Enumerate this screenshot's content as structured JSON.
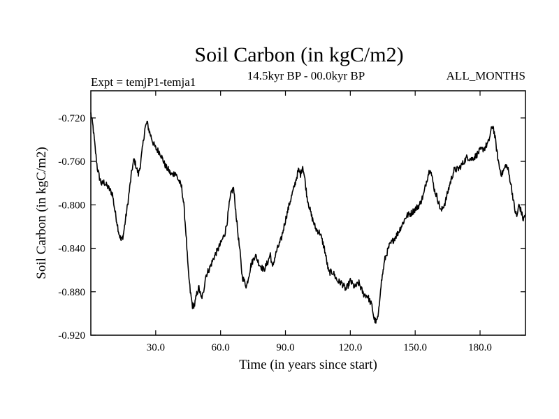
{
  "chart_data": {
    "type": "line",
    "title": "Soil Carbon (in kgC/m2)",
    "subtitle_left": "Expt = temjP1-temja1",
    "subtitle_center": "14.5kyr BP - 00.0kyr BP",
    "subtitle_right": "ALL_MONTHS",
    "xlabel": "Time (in years since start)",
    "ylabel": "Soil Carbon (in kgC/m2)",
    "xlim": [
      0,
      201
    ],
    "ylim": [
      -0.92,
      -0.695
    ],
    "x_ticks": [
      30,
      60,
      90,
      120,
      150,
      180
    ],
    "x_tick_labels": [
      "30.0",
      "60.0",
      "90.0",
      "120.0",
      "150.0",
      "180.0"
    ],
    "y_ticks": [
      -0.72,
      -0.76,
      -0.8,
      -0.84,
      -0.88,
      -0.92
    ],
    "y_tick_labels": [
      "-0.720",
      "-0.760",
      "-0.800",
      "-0.840",
      "-0.880",
      "-0.920"
    ],
    "line_color": "#000000",
    "series": [
      {
        "name": "Soil Carbon",
        "x": [
          0,
          1,
          2,
          3,
          4,
          5,
          6,
          8,
          10,
          11,
          12,
          13,
          14,
          15,
          17,
          18,
          19,
          20,
          22,
          23,
          24,
          25,
          26,
          27,
          28,
          29,
          30,
          32,
          34,
          35,
          36,
          37,
          38,
          39,
          40,
          41,
          42,
          43,
          44,
          45,
          46,
          47,
          48,
          49,
          50,
          51,
          52,
          53,
          55,
          57,
          60,
          62,
          63,
          64,
          65,
          66,
          67,
          68,
          69,
          70,
          72,
          74,
          76,
          78,
          80,
          82,
          83,
          84,
          85,
          86,
          88,
          90,
          92,
          94,
          95,
          96,
          97,
          98,
          99,
          100,
          102,
          104,
          106,
          108,
          110,
          112,
          114,
          116,
          118,
          120,
          122,
          124,
          126,
          128,
          130,
          131,
          132,
          133,
          134,
          136,
          138,
          140,
          142,
          144,
          146,
          148,
          150,
          152,
          154,
          155,
          156,
          157,
          158,
          159,
          160,
          162,
          164,
          166,
          168,
          170,
          172,
          174,
          176,
          178,
          180,
          182,
          184,
          185,
          186,
          187,
          188,
          189,
          190,
          191,
          192,
          193,
          194,
          195,
          196,
          197,
          198,
          199,
          200,
          201
        ],
        "y": [
          -0.716,
          -0.728,
          -0.748,
          -0.766,
          -0.775,
          -0.781,
          -0.779,
          -0.784,
          -0.79,
          -0.804,
          -0.815,
          -0.826,
          -0.833,
          -0.828,
          -0.8,
          -0.784,
          -0.768,
          -0.758,
          -0.772,
          -0.762,
          -0.746,
          -0.73,
          -0.724,
          -0.732,
          -0.738,
          -0.744,
          -0.748,
          -0.752,
          -0.762,
          -0.766,
          -0.768,
          -0.772,
          -0.772,
          -0.77,
          -0.775,
          -0.779,
          -0.784,
          -0.8,
          -0.826,
          -0.86,
          -0.88,
          -0.893,
          -0.892,
          -0.882,
          -0.876,
          -0.886,
          -0.882,
          -0.866,
          -0.858,
          -0.848,
          -0.836,
          -0.826,
          -0.816,
          -0.8,
          -0.788,
          -0.785,
          -0.805,
          -0.826,
          -0.844,
          -0.866,
          -0.875,
          -0.856,
          -0.846,
          -0.855,
          -0.86,
          -0.852,
          -0.845,
          -0.858,
          -0.849,
          -0.842,
          -0.832,
          -0.814,
          -0.798,
          -0.784,
          -0.776,
          -0.768,
          -0.772,
          -0.764,
          -0.777,
          -0.793,
          -0.81,
          -0.822,
          -0.826,
          -0.84,
          -0.862,
          -0.862,
          -0.87,
          -0.872,
          -0.878,
          -0.87,
          -0.876,
          -0.872,
          -0.882,
          -0.884,
          -0.893,
          -0.905,
          -0.908,
          -0.902,
          -0.876,
          -0.85,
          -0.838,
          -0.832,
          -0.826,
          -0.818,
          -0.81,
          -0.808,
          -0.804,
          -0.8,
          -0.79,
          -0.78,
          -0.772,
          -0.766,
          -0.777,
          -0.787,
          -0.792,
          -0.806,
          -0.797,
          -0.781,
          -0.768,
          -0.767,
          -0.762,
          -0.756,
          -0.758,
          -0.755,
          -0.75,
          -0.748,
          -0.742,
          -0.732,
          -0.727,
          -0.739,
          -0.754,
          -0.766,
          -0.772,
          -0.768,
          -0.763,
          -0.768,
          -0.778,
          -0.79,
          -0.804,
          -0.811,
          -0.8,
          -0.806,
          -0.814,
          -0.808
        ]
      }
    ]
  }
}
